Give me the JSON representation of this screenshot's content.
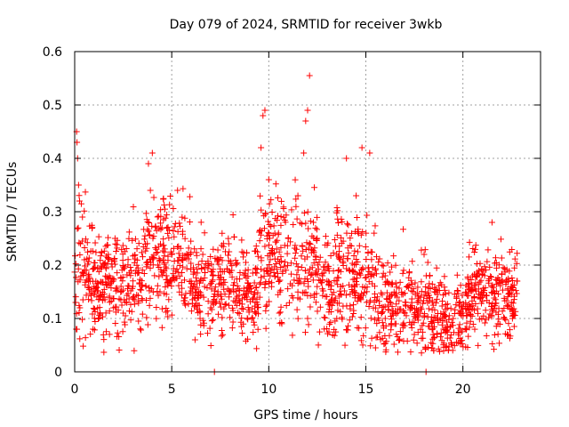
{
  "chart_data": {
    "type": "scatter",
    "title": "Day 079 of 2024, SRMTID for receiver 3wkb",
    "xlabel": "GPS time / hours",
    "ylabel": "SRMTID / TECUs",
    "xlim": [
      0,
      24
    ],
    "ylim": [
      0,
      0.6
    ],
    "xticks": [
      0,
      5,
      10,
      15,
      20
    ],
    "yticks": [
      0,
      0.1,
      0.2,
      0.3,
      0.4,
      0.5,
      0.6
    ],
    "xtick_labels": [
      "0",
      "5",
      "10",
      "15",
      "20"
    ],
    "ytick_labels": [
      "0",
      "0.1",
      "0.2",
      "0.3",
      "0.4",
      "0.5",
      "0.6"
    ],
    "grid": true,
    "legend": "none",
    "marker": "+",
    "series": [
      {
        "name": "SRMTID",
        "color": "#ff0000",
        "description": "dense scatter of roughly 2000 points spanning 0.0 to 22.8 hours",
        "points": [
          [
            0.05,
            0.13
          ],
          [
            0.08,
            0.08
          ],
          [
            0.1,
            0.45
          ],
          [
            0.12,
            0.43
          ],
          [
            0.15,
            0.4
          ],
          [
            0.2,
            0.35
          ],
          [
            0.25,
            0.32
          ],
          [
            0.3,
            0.24
          ],
          [
            0.4,
            0.29
          ],
          [
            0.5,
            0.21
          ],
          [
            0.7,
            0.18
          ],
          [
            1.0,
            0.16
          ],
          [
            1.5,
            0.14
          ],
          [
            2.0,
            0.12
          ],
          [
            2.5,
            0.11
          ],
          [
            3.0,
            0.16
          ],
          [
            3.8,
            0.39
          ],
          [
            3.9,
            0.34
          ],
          [
            4.0,
            0.41
          ],
          [
            4.5,
            0.27
          ],
          [
            5.0,
            0.22
          ],
          [
            5.3,
            0.34
          ],
          [
            6.0,
            0.17
          ],
          [
            6.6,
            0.22
          ],
          [
            7.0,
            0.12
          ],
          [
            7.2,
            0.0
          ],
          [
            8.0,
            0.15
          ],
          [
            8.8,
            0.19
          ],
          [
            9.3,
            0.13
          ],
          [
            9.6,
            0.42
          ],
          [
            9.7,
            0.48
          ],
          [
            9.8,
            0.49
          ],
          [
            10.0,
            0.36
          ],
          [
            10.5,
            0.26
          ],
          [
            11.0,
            0.25
          ],
          [
            11.5,
            0.33
          ],
          [
            11.8,
            0.41
          ],
          [
            11.9,
            0.47
          ],
          [
            12.0,
            0.49
          ],
          [
            12.1,
            0.555
          ],
          [
            12.3,
            0.28
          ],
          [
            13.0,
            0.17
          ],
          [
            13.5,
            0.22
          ],
          [
            14.0,
            0.4
          ],
          [
            14.5,
            0.33
          ],
          [
            14.8,
            0.42
          ],
          [
            15.2,
            0.41
          ],
          [
            16.0,
            0.1
          ],
          [
            16.5,
            0.09
          ],
          [
            17.0,
            0.11
          ],
          [
            17.5,
            0.07
          ],
          [
            18.0,
            0.22
          ],
          [
            18.1,
            0.0
          ],
          [
            18.5,
            0.04
          ],
          [
            19.0,
            0.08
          ],
          [
            19.5,
            0.1
          ],
          [
            20.0,
            0.11
          ],
          [
            20.5,
            0.18
          ],
          [
            21.0,
            0.14
          ],
          [
            21.5,
            0.28
          ],
          [
            22.0,
            0.17
          ],
          [
            22.5,
            0.13
          ],
          [
            22.8,
            0.17
          ]
        ]
      }
    ]
  }
}
